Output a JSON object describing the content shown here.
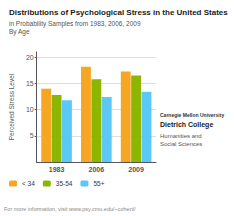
{
  "chart_data": {
    "type": "bar",
    "title": "Distributions of Psychological Stress in the United States",
    "subtitle": [
      "in Probability Samples from 1983, 2006, 2009",
      "By Age"
    ],
    "ylabel": "Perceived Stress Level",
    "categories": [
      "1983",
      "2006",
      "2009"
    ],
    "series": [
      {
        "name": "< 34",
        "color": "#F5A623",
        "values": [
          14.0,
          18.2,
          17.3
        ]
      },
      {
        "name": "35-54",
        "color": "#8DB600",
        "values": [
          12.8,
          15.8,
          16.5
        ]
      },
      {
        "name": "55+",
        "color": "#5BC8F5",
        "values": [
          11.8,
          12.4,
          13.4
        ]
      }
    ],
    "ylim": [
      0,
      21
    ],
    "yticks": [
      5,
      10,
      15,
      20
    ],
    "grid": true,
    "legend": "lower left",
    "annotations": [
      "Carnegie Mellon University",
      "Dietrich College",
      "Humanities and",
      "Social Sciences",
      "For more information, visit www.psy.cmu.edu/~cohenl/"
    ]
  }
}
